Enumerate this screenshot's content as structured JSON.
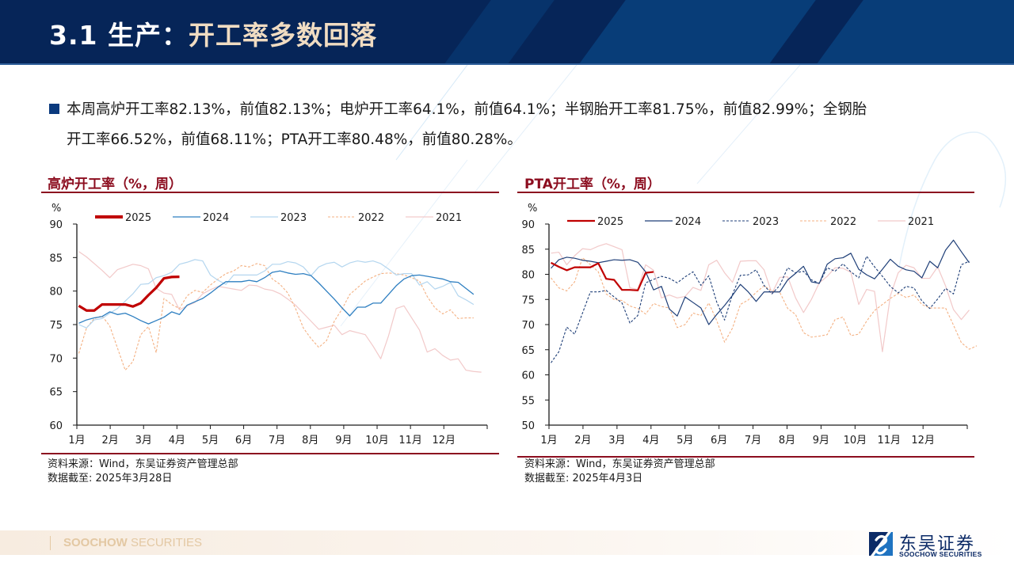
{
  "header": {
    "title_prefix": "3.1 生产：",
    "title_main": "开工率多数回落"
  },
  "summary": {
    "text_line1": "本周高炉开工率82.13%，前值82.13%；电炉开工率64.1%，前值64.1%；半钢胎开工率81.75%，前值82.99%；全钢胎",
    "text_line2": "开工率66.52%，前值68.11%；PTA开工率80.48%，前值80.28%。"
  },
  "left_panel": {
    "title": "高炉开工率（%，周）",
    "source": "资料来源：Wind，东吴证券资产管理总部",
    "cutoff": "数据截至: 2025年3月28日"
  },
  "right_panel": {
    "title": "PTA开工率（%，周）",
    "source": "资料来源：Wind，东吴证券资产管理总部",
    "cutoff": "数据截至: 2025年4月3日"
  },
  "footer": {
    "brand_bold": "SOOCHOW",
    "brand_light": " SECURITIES",
    "logo_cn": "东吴证券",
    "logo_en": "SOOCHOW SECURITIES"
  },
  "colors": {
    "header_bg": "#062558",
    "accent_red": "#8c0d1f",
    "s2025": "#c00000",
    "s2024_left": "#2e7fc1",
    "s2023_left": "#b4d6ef",
    "s2022": "#f4b183",
    "s2021": "#f2c9c9",
    "s2024_right": "#1f3f78",
    "s2023_right": "#1f3f78"
  },
  "chart_data": [
    {
      "type": "line",
      "title": "高炉开工率（%，周）",
      "ylabel": "%",
      "xlabel": "",
      "ylim": [
        60,
        90
      ],
      "yticks": [
        60,
        65,
        70,
        75,
        80,
        85,
        90
      ],
      "xticks": [
        "1月",
        "2月",
        "3月",
        "4月",
        "5月",
        "6月",
        "7月",
        "8月",
        "9月",
        "10月",
        "11月",
        "12月"
      ],
      "x_unit": "week",
      "legend_position": "top",
      "grid": false,
      "series": [
        {
          "name": "2025",
          "style": "thick-solid",
          "values": [
            77.8,
            77.1,
            77.1,
            78.0,
            78.0,
            78.0,
            78.0,
            77.7,
            78.2,
            79.4,
            80.5,
            81.9,
            82.1,
            82.13
          ]
        },
        {
          "name": "2024",
          "style": "solid",
          "values": [
            75.2,
            75.7,
            76.0,
            76.2,
            76.9,
            76.5,
            76.7,
            76.2,
            75.6,
            75.1,
            75.6,
            76.1,
            76.9,
            76.5,
            77.9,
            78.4,
            78.9,
            79.7,
            80.6,
            81.4,
            81.4,
            81.4,
            81.6,
            81.4,
            82.0,
            82.8,
            83.0,
            82.7,
            82.5,
            82.6,
            82.3,
            81.2,
            80.0,
            78.8,
            77.5,
            76.3,
            77.6,
            77.6,
            78.2,
            78.2,
            79.5,
            80.8,
            81.8,
            82.3,
            82.4,
            82.2,
            82.0,
            81.8,
            81.4,
            81.3,
            80.4,
            79.5
          ]
        },
        {
          "name": "2023",
          "style": "solid-light",
          "values": [
            75.0,
            74.5,
            75.7,
            75.9,
            76.7,
            77.4,
            78.5,
            79.6,
            81.0,
            81.1,
            82.0,
            82.3,
            82.8,
            84.0,
            84.3,
            84.7,
            84.5,
            82.4,
            81.6,
            81.0,
            82.4,
            82.4,
            82.4,
            82.4,
            83.0,
            84.0,
            84.0,
            84.4,
            84.2,
            83.6,
            82.3,
            83.6,
            84.1,
            84.3,
            83.6,
            84.2,
            84.5,
            84.3,
            84.5,
            84.1,
            83.3,
            82.4,
            82.6,
            82.6,
            80.9,
            81.4,
            80.3,
            80.7,
            81.3,
            79.3,
            78.7,
            78.0
          ]
        },
        {
          "name": "2022",
          "style": "dashed",
          "values": [
            70.7,
            74.5,
            75.9,
            76.3,
            74.8,
            71.5,
            68.2,
            69.5,
            73.5,
            74.7,
            70.8,
            78.9,
            78.0,
            77.4,
            79.3,
            80.1,
            79.8,
            80.9,
            81.8,
            82.6,
            83.0,
            83.8,
            83.6,
            84.1,
            83.8,
            81.8,
            81.0,
            79.7,
            77.4,
            74.5,
            72.9,
            71.6,
            72.6,
            75.5,
            77.3,
            79.5,
            80.5,
            81.5,
            82.1,
            82.6,
            82.7,
            82.6,
            82.4,
            82.0,
            81.5,
            79.2,
            77.5,
            76.6,
            77.2,
            75.9,
            76.0,
            76.0
          ]
        },
        {
          "name": "2021",
          "style": "solid-faint",
          "values": [
            85.9,
            85.1,
            84.1,
            83.1,
            82.0,
            83.2,
            83.6,
            84.0,
            83.8,
            83.3,
            80.4,
            79.7,
            79.5,
            77.2,
            77.8,
            78.3,
            79.6,
            80.2,
            80.7,
            80.5,
            80.3,
            80.1,
            80.9,
            80.8,
            80.3,
            80.1,
            79.6,
            78.8,
            77.9,
            76.7,
            75.5,
            74.3,
            74.6,
            74.9,
            73.5,
            74.1,
            73.8,
            73.5,
            71.8,
            69.9,
            73.3,
            77.4,
            77.8,
            76.0,
            74.2,
            70.9,
            71.4,
            70.4,
            69.7,
            69.9,
            68.2,
            68.0,
            67.9
          ]
        }
      ]
    },
    {
      "type": "line",
      "title": "PTA开工率（%，周）",
      "ylabel": "%",
      "xlabel": "",
      "ylim": [
        50,
        90
      ],
      "yticks": [
        50,
        55,
        60,
        65,
        70,
        75,
        80,
        85,
        90
      ],
      "xticks": [
        "1月",
        "2月",
        "3月",
        "4月",
        "5月",
        "6月",
        "7月",
        "8月",
        "9月",
        "10月",
        "11月",
        "12月"
      ],
      "x_unit": "week",
      "legend_position": "top",
      "grid": false,
      "series": [
        {
          "name": "2025",
          "style": "solid",
          "values": [
            82.3,
            81.5,
            80.8,
            81.4,
            81.4,
            81.4,
            82.2,
            79.1,
            78.9,
            76.9,
            76.9,
            76.8,
            80.3,
            80.48
          ]
        },
        {
          "name": "2024",
          "style": "solid",
          "values": [
            81.2,
            82.9,
            83.4,
            83.2,
            82.8,
            82.6,
            82.3,
            82.6,
            82.9,
            82.8,
            82.9,
            82.4,
            80.5,
            76.9,
            77.6,
            73.1,
            71.7,
            75.5,
            74.4,
            73.3,
            70.0,
            72.0,
            73.8,
            75.8,
            78.0,
            76.5,
            74.6,
            76.5,
            76.5,
            76.5,
            78.9,
            80.2,
            81.6,
            78.5,
            78.2,
            82.0,
            83.1,
            83.3,
            84.2,
            81.0,
            79.9,
            79.1,
            81.0,
            83.0,
            81.6,
            80.9,
            80.6,
            79.3,
            82.6,
            81.3,
            84.8,
            86.8,
            84.5,
            82.3
          ]
        },
        {
          "name": "2023",
          "style": "dashed",
          "values": [
            62.4,
            64.6,
            69.5,
            68.1,
            72.3,
            76.5,
            76.5,
            76.8,
            75.5,
            74.3,
            70.3,
            71.8,
            78.3,
            79.0,
            79.6,
            79.2,
            78.3,
            79.5,
            80.5,
            77.8,
            79.7,
            74.5,
            70.9,
            76.0,
            79.8,
            79.9,
            80.9,
            77.8,
            76.1,
            77.8,
            81.3,
            80.3,
            80.6,
            78.9,
            78.2,
            81.3,
            80.6,
            82.1,
            80.5,
            79.3,
            83.6,
            81.5,
            79.6,
            77.6,
            76.3,
            77.6,
            77.3,
            74.7,
            73.2,
            75.1,
            77.2,
            76.1,
            81.9,
            82.6
          ]
        },
        {
          "name": "2022",
          "style": "dashed-light",
          "values": [
            79.3,
            77.3,
            76.7,
            78.5,
            83.3,
            81.9,
            80.5,
            76.1,
            75.0,
            74.8,
            73.7,
            73.2,
            72.1,
            74.2,
            73.6,
            73.3,
            69.4,
            70.0,
            72.3,
            71.8,
            74.3,
            70.8,
            66.5,
            69.3,
            74.0,
            74.9,
            76.4,
            77.7,
            76.7,
            76.4,
            73.2,
            72.0,
            68.4,
            67.5,
            67.7,
            68.0,
            71.0,
            71.5,
            67.8,
            68.1,
            70.7,
            72.8,
            74.0,
            75.2,
            76.2,
            75.4,
            75.9,
            74.0,
            73.3,
            73.3,
            73.3,
            69.9,
            66.4,
            65.1,
            65.8
          ]
        },
        {
          "name": "2021",
          "style": "solid-faint",
          "values": [
            84.2,
            84.4,
            81.9,
            83.7,
            85.1,
            84.9,
            85.6,
            86.1,
            85.5,
            84.9,
            77.3,
            77.0,
            81.9,
            80.8,
            75.3,
            75.9,
            75.3,
            75.6,
            77.4,
            76.8,
            81.9,
            82.8,
            80.3,
            78.4,
            82.6,
            82.7,
            82.7,
            80.9,
            76.2,
            79.4,
            79.5,
            75.3,
            72.4,
            75.0,
            78.3,
            79.6,
            81.3,
            81.2,
            80.4,
            74.0,
            77.0,
            76.6,
            64.6,
            75.7,
            80.3,
            81.8,
            81.3,
            79.2,
            79.2,
            81.5,
            77.7,
            73.0,
            71.0,
            72.9
          ]
        }
      ]
    }
  ]
}
